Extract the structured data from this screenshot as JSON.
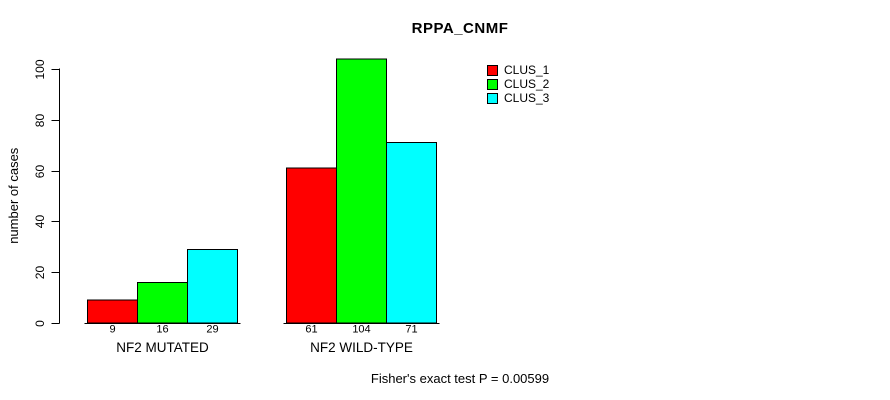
{
  "chart_data": {
    "type": "bar",
    "title": "RPPA_CNMF",
    "categories": [
      "NF2 MUTATED",
      "NF2 WILD-TYPE"
    ],
    "series": [
      {
        "name": "CLUS_1",
        "color": "#FF0000",
        "values": [
          9,
          61
        ]
      },
      {
        "name": "CLUS_2",
        "color": "#00FF00",
        "values": [
          16,
          104
        ]
      },
      {
        "name": "CLUS_3",
        "color": "#00FFFF",
        "values": [
          29,
          71
        ]
      }
    ],
    "bar_value_labels": [
      [
        "9",
        "16",
        "29"
      ],
      [
        "61",
        "104",
        "71"
      ]
    ],
    "ylabel": "number of cases",
    "yticks": [
      0,
      20,
      40,
      60,
      80,
      100
    ],
    "ylim": [
      0,
      104
    ],
    "legend_position": "top-right",
    "grid": false,
    "annotation": "Fisher's exact test P = 0.00599",
    "axis_color": "#000000",
    "background_color": "#FFFFFF"
  }
}
